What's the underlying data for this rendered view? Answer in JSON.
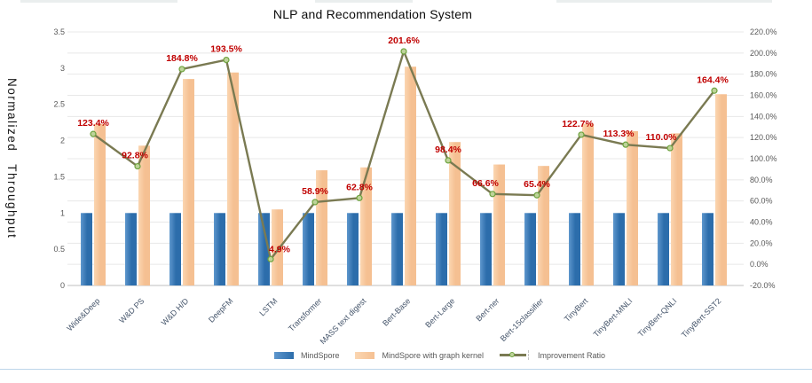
{
  "chart_title": "NLP and Recommendation System",
  "y_axis_title": "Normalized Throughput",
  "legend": {
    "items": [
      {
        "label": "MindSpore",
        "swatch": "bar_blue"
      },
      {
        "label": "MindSpore with graph kernel",
        "swatch": "bar_orange"
      },
      {
        "label": "Improvement Ratio",
        "swatch": "line_olive"
      }
    ]
  },
  "colors": {
    "bar_blue_light": "#5e97cd",
    "bar_blue_dark": "#2c6dab",
    "bar_orange_light": "#fbd6b1",
    "bar_orange_dark": "#f5c092",
    "line_ratio": "#7a7a52",
    "marker_fill": "#bed39a",
    "marker_stroke": "#6ea33e",
    "data_label": "#c00000",
    "axis_text": "#595959",
    "category_text": "#44546a",
    "gridline": "#e8e8e8",
    "axis_line": "#bfbfbf"
  },
  "chart_data": {
    "type": "bar",
    "subtype": "grouped bars with secondary-axis line overlay",
    "title": "NLP and Recommendation System",
    "categories": [
      "Wide&Deep",
      "W&D PS",
      "W&D H/D",
      "DeepFM",
      "LSTM",
      "Transformer",
      "MASS text digest",
      "Bert-Base",
      "Bert-Large",
      "Bert-ner",
      "Bert-15classifier",
      "TinyBert",
      "TinyBert-MNLI",
      "TinyBert-QNLI",
      "TinyBert-SST2"
    ],
    "series": [
      {
        "name": "MindSpore",
        "type": "bar",
        "axis": "left",
        "values": [
          1,
          1,
          1,
          1,
          1,
          1,
          1,
          1,
          1,
          1,
          1,
          1,
          1,
          1,
          1
        ]
      },
      {
        "name": "MindSpore with graph kernel",
        "type": "bar",
        "axis": "left",
        "values": [
          2.23,
          1.93,
          2.85,
          2.94,
          1.05,
          1.59,
          1.63,
          3.02,
          1.98,
          1.67,
          1.65,
          2.23,
          2.13,
          2.1,
          2.64
        ]
      },
      {
        "name": "Improvement Ratio",
        "type": "line",
        "axis": "right",
        "values_percent": [
          123.4,
          92.8,
          184.8,
          193.5,
          4.9,
          58.9,
          62.8,
          201.6,
          98.4,
          66.6,
          65.4,
          122.7,
          113.3,
          110.0,
          164.4
        ],
        "labels": [
          "123.4%",
          "92.8%",
          "184.8%",
          "193.5%",
          "4.9%",
          "58.9%",
          "62.8%",
          "201.6%",
          "98.4%",
          "66.6%",
          "65.4%",
          "122.7%",
          "113.3%",
          "110.0%",
          "164.4%"
        ]
      }
    ],
    "left_axis": {
      "title": "Normalized Throughput",
      "min": 0,
      "max": 3.5,
      "step": 0.5,
      "tick_labels": [
        "3.5",
        "3",
        "2.5",
        "2",
        "1.5",
        "1",
        "0.5",
        "0"
      ]
    },
    "right_axis": {
      "min": -20,
      "max": 220,
      "step": 20,
      "tick_labels": [
        "220.0%",
        "200.0%",
        "180.0%",
        "160.0%",
        "140.0%",
        "120.0%",
        "100.0%",
        "80.0%",
        "60.0%",
        "40.0%",
        "20.0%",
        "0.0%",
        "-20.0%"
      ]
    },
    "grid": "horizontal gridlines at right-axis steps",
    "legend_position": "bottom",
    "data_label_color": "#c00000"
  }
}
